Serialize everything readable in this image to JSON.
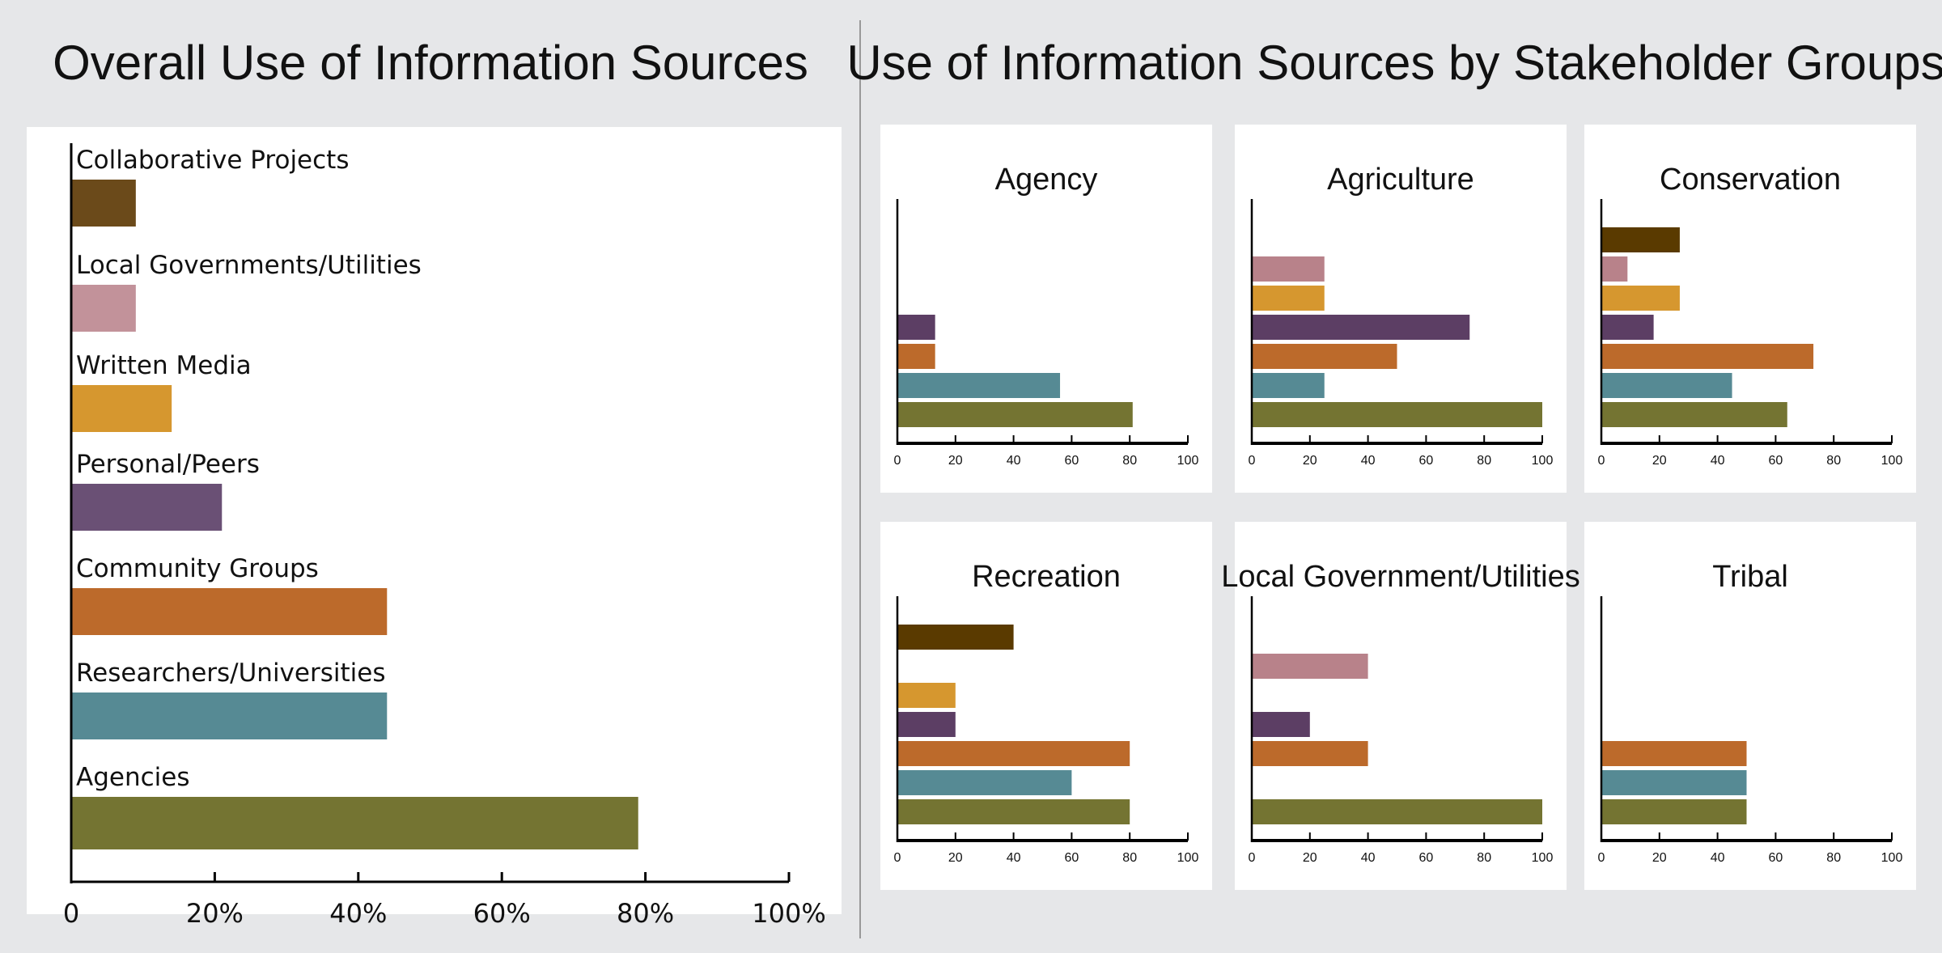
{
  "left_title": "Overall Use of Information Sources",
  "right_title": "Use of Information Sources by Stakeholder Groups",
  "colors": {
    "Collaborative Projects": "#6b4a1a",
    "Local Governments/Utilities": "#c2929a",
    "Written Media": "#d6972f",
    "Personal/Peers": "#6a5075",
    "Community Groups": "#bc6a2b",
    "Researchers/Universities": "#568a94",
    "Agencies": "#747432"
  },
  "small_colors": {
    "Collaborative Projects": "#5a3a00",
    "Local Governments/Utilities": "#b8828a",
    "Written Media": "#d6972f",
    "Personal/Peers": "#5c3e64",
    "Community Groups": "#bc6a2b",
    "Researchers/Universities": "#568a94",
    "Agencies": "#747432"
  },
  "chart_data": [
    {
      "type": "bar",
      "orientation": "horizontal",
      "title": "Overall Use of Information Sources",
      "categories": [
        "Collaborative Projects",
        "Local Governments/Utilities",
        "Written Media",
        "Personal/Peers",
        "Community Groups",
        "Researchers/Universities",
        "Agencies"
      ],
      "values": [
        9,
        9,
        14,
        21,
        44,
        44,
        79
      ],
      "xlim": [
        0,
        100
      ],
      "xticks": [
        "0",
        "20%",
        "40%",
        "60%",
        "80%",
        "100%"
      ],
      "grid": false
    },
    {
      "type": "bar",
      "orientation": "horizontal",
      "title": "Agency",
      "categories": [
        "Collaborative Projects",
        "Local Governments/Utilities",
        "Written Media",
        "Personal/Peers",
        "Community Groups",
        "Researchers/Universities",
        "Agencies"
      ],
      "values": [
        0,
        0,
        0,
        13,
        13,
        56,
        81
      ],
      "xlim": [
        0,
        100
      ],
      "xticks": [
        "0",
        "20",
        "40",
        "60",
        "80",
        "100"
      ],
      "grid": false
    },
    {
      "type": "bar",
      "orientation": "horizontal",
      "title": "Agriculture",
      "categories": [
        "Collaborative Projects",
        "Local Governments/Utilities",
        "Written Media",
        "Personal/Peers",
        "Community Groups",
        "Researchers/Universities",
        "Agencies"
      ],
      "values": [
        0,
        25,
        25,
        75,
        50,
        25,
        100
      ],
      "xlim": [
        0,
        100
      ],
      "xticks": [
        "0",
        "20",
        "40",
        "60",
        "80",
        "100"
      ],
      "grid": false
    },
    {
      "type": "bar",
      "orientation": "horizontal",
      "title": "Conservation",
      "categories": [
        "Collaborative Projects",
        "Local Governments/Utilities",
        "Written Media",
        "Personal/Peers",
        "Community Groups",
        "Researchers/Universities",
        "Agencies"
      ],
      "values": [
        27,
        9,
        27,
        18,
        73,
        45,
        64
      ],
      "xlim": [
        0,
        100
      ],
      "xticks": [
        "0",
        "20",
        "40",
        "60",
        "80",
        "100"
      ],
      "grid": false
    },
    {
      "type": "bar",
      "orientation": "horizontal",
      "title": "Recreation",
      "categories": [
        "Collaborative Projects",
        "Local Governments/Utilities",
        "Written Media",
        "Personal/Peers",
        "Community Groups",
        "Researchers/Universities",
        "Agencies"
      ],
      "values": [
        40,
        0,
        20,
        20,
        80,
        60,
        80
      ],
      "xlim": [
        0,
        100
      ],
      "xticks": [
        "0",
        "20",
        "40",
        "60",
        "80",
        "100"
      ],
      "grid": false
    },
    {
      "type": "bar",
      "orientation": "horizontal",
      "title": "Local Government/Utilities",
      "categories": [
        "Collaborative Projects",
        "Local Governments/Utilities",
        "Written Media",
        "Personal/Peers",
        "Community Groups",
        "Researchers/Universities",
        "Agencies"
      ],
      "values": [
        0,
        40,
        0,
        20,
        40,
        0,
        100
      ],
      "xlim": [
        0,
        100
      ],
      "xticks": [
        "0",
        "20",
        "40",
        "60",
        "80",
        "100"
      ],
      "grid": false
    },
    {
      "type": "bar",
      "orientation": "horizontal",
      "title": "Tribal",
      "categories": [
        "Collaborative Projects",
        "Local Governments/Utilities",
        "Written Media",
        "Personal/Peers",
        "Community Groups",
        "Researchers/Universities",
        "Agencies"
      ],
      "values": [
        0,
        0,
        0,
        0,
        50,
        50,
        50
      ],
      "xlim": [
        0,
        100
      ],
      "xticks": [
        "0",
        "20",
        "40",
        "60",
        "80",
        "100"
      ],
      "grid": false
    }
  ]
}
